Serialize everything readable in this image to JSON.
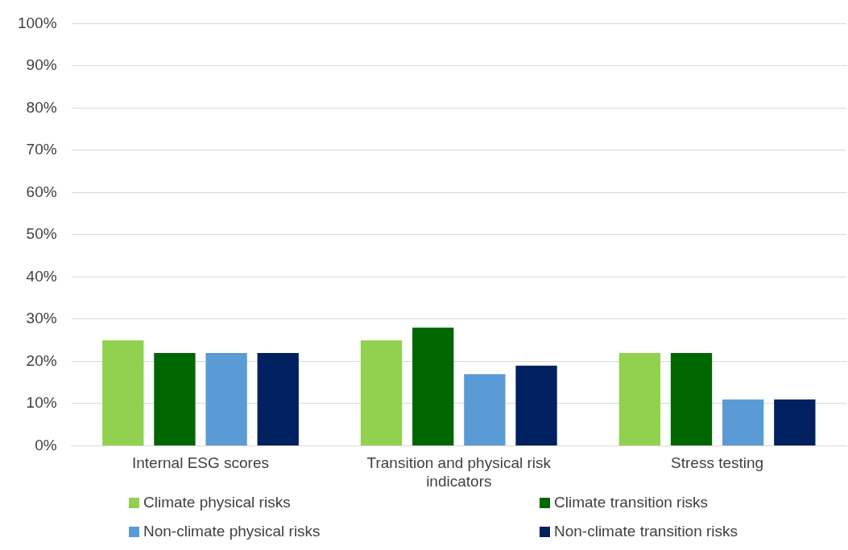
{
  "chart_data": {
    "type": "bar",
    "categories": [
      "Internal ESG scores",
      "Transition and physical risk indicators",
      "Stress testing"
    ],
    "series": [
      {
        "name": "Climate physical risks",
        "color": "#92d050",
        "values": [
          25,
          25,
          22
        ]
      },
      {
        "name": "Climate transition risks",
        "color": "#006600",
        "values": [
          22,
          28,
          22
        ]
      },
      {
        "name": "Non-climate physical risks",
        "color": "#5b9bd5",
        "values": [
          22,
          17,
          11
        ]
      },
      {
        "name": "Non-climate transition risks",
        "color": "#002060",
        "values": [
          22,
          19,
          11
        ]
      }
    ],
    "ylim": [
      0,
      100
    ],
    "yticks": [
      {
        "value": 0,
        "label": "0%"
      },
      {
        "value": 10,
        "label": "10%"
      },
      {
        "value": 20,
        "label": "20%"
      },
      {
        "value": 30,
        "label": "30%"
      },
      {
        "value": 40,
        "label": "40%"
      },
      {
        "value": 50,
        "label": "50%"
      },
      {
        "value": 60,
        "label": "60%"
      },
      {
        "value": 70,
        "label": "70%"
      },
      {
        "value": 80,
        "label": "80%"
      },
      {
        "value": 90,
        "label": "90%"
      },
      {
        "value": 100,
        "label": "100%"
      }
    ],
    "grid": "y",
    "legend": "bottom"
  }
}
